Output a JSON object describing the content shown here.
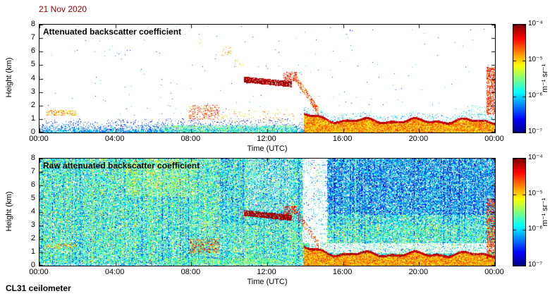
{
  "figure": {
    "date_label": "21 Nov 2020",
    "date_color": "#8b0000",
    "footer": "CL31 ceilometer",
    "background": "#ffffff"
  },
  "colorbar": {
    "tick_labels": [
      "10⁻⁴",
      "10⁻⁵",
      "10⁻⁶",
      "10⁻⁷"
    ],
    "tick_exponents": [
      -4,
      -5,
      -6,
      -7
    ],
    "unit_label": "m⁻¹ sr⁻¹",
    "log_range": [
      -7,
      -4
    ],
    "colormap": "jet"
  },
  "chart_data": [
    {
      "type": "heatmap",
      "title": "Attenuated backscatter coefficient",
      "xlabel": "Time (UTC)",
      "ylabel": "Height (km)",
      "x_ticks": [
        "00:00",
        "04:00",
        "08:00",
        "12:00",
        "16:00",
        "20:00",
        "00:00"
      ],
      "x_tick_hours": [
        0,
        4,
        8,
        12,
        16,
        20,
        24
      ],
      "y_ticks": [
        0,
        1,
        2,
        3,
        4,
        5,
        6,
        7,
        8
      ],
      "x_range_hours": [
        0,
        24
      ],
      "y_range_km": [
        0,
        8
      ],
      "value_scale": "log10 attenuated backscatter",
      "value_range_log10": [
        -7,
        -4
      ],
      "background": "white",
      "features": [
        {
          "kind": "surface",
          "label": "surface aerosol layer",
          "t0": 0,
          "t1": 14.3,
          "hmax": 1.05,
          "d0": 0.95,
          "hs": 0.33,
          "lv": -6.1,
          "grad": -0.5,
          "sd": 0.9
        },
        {
          "kind": "speckle",
          "label": "morning low aerosol",
          "t0": 6.5,
          "t1": 13.5,
          "h0": 0.05,
          "h1": 0.55,
          "density": 0.5,
          "lv": -5.6,
          "sd": 0.8
        },
        {
          "kind": "speckle",
          "label": "early cloud fragments 1.5 km",
          "t0": 0.35,
          "t1": 1.9,
          "h0": 1.3,
          "h1": 1.68,
          "density": 0.38,
          "lv": -4.9,
          "sd": 0.9
        },
        {
          "kind": "speckle",
          "label": "broken clouds 1-2 km",
          "t0": 7.85,
          "t1": 9.45,
          "h0": 0.95,
          "h1": 2.05,
          "density": 0.26,
          "lv": -4.55,
          "sd": 0.8
        },
        {
          "kind": "speckle",
          "label": "scattered cloud bits late morning",
          "t0": 9.45,
          "t1": 13.4,
          "h0": 0.8,
          "h1": 1.75,
          "density": 0.07,
          "lv": -5.0,
          "sd": 1.0
        },
        {
          "kind": "band",
          "label": "cloud layer 3.6-4.0 km",
          "t0": 10.75,
          "t1": 13.3,
          "c0": 3.95,
          "c1": 3.6,
          "half": 0.22,
          "density": 0.88,
          "lv": -4.12,
          "sd": 0.3
        },
        {
          "kind": "speckle",
          "label": "cloud blob 4.2 km",
          "t0": 12.85,
          "t1": 13.55,
          "h0": 3.85,
          "h1": 4.5,
          "density": 0.45,
          "lv": -4.45,
          "sd": 0.5
        },
        {
          "kind": "band",
          "label": "descending cloud 4 to 1.5 km",
          "t0": 13.4,
          "t1": 14.7,
          "c0": 4.25,
          "c1": 1.55,
          "half": 0.3,
          "density": 0.5,
          "lv": -4.6,
          "sd": 0.7
        },
        {
          "kind": "speckle",
          "label": "high specks 6 km",
          "t0": 9.55,
          "t1": 10.2,
          "h0": 5.7,
          "h1": 6.4,
          "density": 0.1,
          "lv": -4.9,
          "sd": 0.7
        },
        {
          "kind": "speckle",
          "label": "high specks 5 km",
          "t0": 10.25,
          "t1": 10.75,
          "h0": 4.9,
          "h1": 5.45,
          "density": 0.09,
          "lv": -5.0,
          "sd": 0.6
        },
        {
          "kind": "speckle",
          "label": "high specks 6.6 km",
          "t0": 8.3,
          "t1": 8.65,
          "h0": 6.4,
          "h1": 6.95,
          "density": 0.09,
          "lv": -5.1,
          "sd": 0.5
        },
        {
          "kind": "speckle",
          "label": "precipitation streak 23:30-24:00",
          "t0": 23.55,
          "t1": 24,
          "h0": 1.35,
          "h1": 4.9,
          "density": 0.55,
          "lv": -4.5,
          "sd": 0.7
        },
        {
          "kind": "speckle",
          "label": "specks above evening layer",
          "t0": 22.3,
          "t1": 23.6,
          "h0": 1.1,
          "h1": 2.05,
          "density": 0.1,
          "lv": -5.7,
          "sd": 0.8
        },
        {
          "kind": "boundary_layer",
          "label": "evening aerosol layer",
          "t0": 13.9,
          "t1": 24,
          "h_mean": 0.95,
          "wobble": 0.28,
          "bump": 0.5,
          "edge": 0.17,
          "density": 0.97,
          "lv_core": -4.85,
          "sd": 0.8,
          "lv_edge": -4.2,
          "above_h": 0.45,
          "above_density": 0.13,
          "above_lv": -6.0
        },
        {
          "kind": "speckle",
          "label": "sparse background specks",
          "t0": 0,
          "t1": 24,
          "h0": 0.9,
          "h1": 7.9,
          "density": 0.0022,
          "lv": -6.2,
          "sd": 0.8
        }
      ]
    },
    {
      "type": "heatmap",
      "title": "Raw attenuated backscatter coefficient",
      "xlabel": "Time (UTC)",
      "ylabel": "Height (km)",
      "x_ticks": [
        "00:00",
        "04:00",
        "08:00",
        "12:00",
        "16:00",
        "20:00",
        "00:00"
      ],
      "x_tick_hours": [
        0,
        4,
        8,
        12,
        16,
        20,
        24
      ],
      "y_ticks": [
        0,
        1,
        2,
        3,
        4,
        5,
        6,
        7,
        8
      ],
      "x_range_hours": [
        0,
        24
      ],
      "y_range_km": [
        0,
        8
      ],
      "value_scale": "log10 raw attenuated backscatter",
      "value_range_log10": [
        -7,
        -4
      ],
      "background": "speckled instrument noise",
      "noise": {
        "density": 0.8,
        "lv_mean": -5.9,
        "lv_spread": 0.9,
        "red_p": 0.004
      },
      "shadows": [
        {
          "t0": 13.85,
          "t1": 15.15,
          "h0": 1.7,
          "h1": 8,
          "mult": 0.15,
          "label": "attenuation above thick cloud"
        },
        {
          "t0": 14.2,
          "t1": 24,
          "h0": 0.95,
          "h1": 1.7,
          "mult": 0.3,
          "label": "attenuation above evening layer"
        },
        {
          "t0": 0,
          "t1": 24,
          "h0": 0,
          "h1": 0.2,
          "mult": 0.35,
          "label": "near-field overlap gap"
        },
        {
          "t0": 10.9,
          "t1": 13.35,
          "h0": 4.2,
          "h1": 8,
          "mult": 0.8,
          "label": "attenuation above cloud band"
        }
      ],
      "tints": [
        {
          "t0": 0,
          "t1": 24,
          "h0": 0.2,
          "h1": 3.0,
          "dlv": 0.12
        },
        {
          "t0": 0,
          "t1": 9.5,
          "h0": 3.0,
          "h1": 8,
          "dlv": 0.12
        },
        {
          "t0": 4.5,
          "t1": 8.2,
          "h0": 5.2,
          "h1": 7.9,
          "dlv": 0.2
        },
        {
          "t0": 15,
          "t1": 24,
          "h0": 3.8,
          "h1": 8,
          "dlv": -0.3
        }
      ],
      "features": [
        {
          "kind": "surface",
          "label": "surface aerosol layer",
          "t0": 0,
          "t1": 14.3,
          "hmax": 0.9,
          "d0": 0.6,
          "hs": 0.3,
          "lv": -6.0,
          "grad": -0.5,
          "sd": 0.9
        },
        {
          "kind": "speckle",
          "label": "morning low aerosol",
          "t0": 6.5,
          "t1": 13.5,
          "h0": 0.05,
          "h1": 0.55,
          "density": 0.45,
          "lv": -5.6,
          "sd": 0.8
        },
        {
          "kind": "speckle",
          "label": "early cloud fragments 1.5 km",
          "t0": 0.35,
          "t1": 1.9,
          "h0": 1.3,
          "h1": 1.68,
          "density": 0.35,
          "lv": -4.9,
          "sd": 0.9
        },
        {
          "kind": "speckle",
          "label": "broken clouds 1-2 km",
          "t0": 7.85,
          "t1": 9.45,
          "h0": 0.95,
          "h1": 2.05,
          "density": 0.3,
          "lv": -4.55,
          "sd": 0.8
        },
        {
          "kind": "band",
          "label": "cloud layer 3.6-4.0 km",
          "t0": 10.75,
          "t1": 13.3,
          "c0": 3.95,
          "c1": 3.6,
          "half": 0.22,
          "density": 0.88,
          "lv": -4.12,
          "sd": 0.3
        },
        {
          "kind": "speckle",
          "label": "cloud blob 4.2 km",
          "t0": 12.85,
          "t1": 13.55,
          "h0": 3.85,
          "h1": 4.5,
          "density": 0.4,
          "lv": -4.45,
          "sd": 0.5
        },
        {
          "kind": "band",
          "label": "descending cloud 4 to 1.5 km",
          "t0": 13.4,
          "t1": 14.7,
          "c0": 4.25,
          "c1": 1.55,
          "half": 0.3,
          "density": 0.35,
          "lv": -4.6,
          "sd": 0.7
        },
        {
          "kind": "speckle",
          "label": "precipitation streak 23:30-24:00",
          "t0": 23.55,
          "t1": 24,
          "h0": 0.5,
          "h1": 5.0,
          "density": 0.5,
          "lv": -4.5,
          "sd": 0.7
        },
        {
          "kind": "boundary_layer",
          "label": "evening aerosol layer",
          "t0": 13.9,
          "t1": 24,
          "h_mean": 0.95,
          "wobble": 0.28,
          "bump": 0.5,
          "edge": 0.17,
          "density": 0.97,
          "lv_core": -4.85,
          "sd": 0.8,
          "lv_edge": -4.2,
          "above_h": 0,
          "above_density": 0,
          "above_lv": -6.0
        }
      ]
    }
  ]
}
